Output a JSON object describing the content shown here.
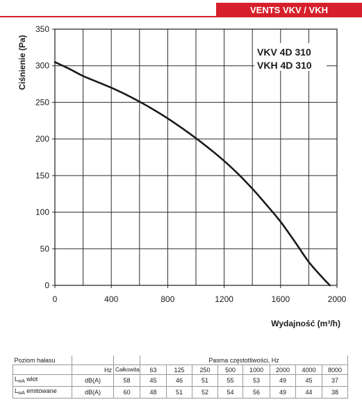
{
  "brand": {
    "label": "VENTS VKV / VKH"
  },
  "chart_data": {
    "type": "line",
    "model_labels": [
      "VKV 4D 310",
      "VKH 4D 310"
    ],
    "xlabel": "Wydajność (m³/h)",
    "ylabel": "Ciśnienie (Pa)",
    "xlim": [
      0,
      2000
    ],
    "ylim": [
      0,
      350
    ],
    "x_major_ticks": [
      0,
      400,
      800,
      1200,
      1600,
      2000
    ],
    "x_gridlines_step": 200,
    "y_ticks": [
      0,
      50,
      100,
      150,
      200,
      250,
      300,
      350
    ],
    "grid": true,
    "series": [
      {
        "x": [
          0,
          100,
          200,
          300,
          400,
          500,
          600,
          700,
          800,
          900,
          1000,
          1100,
          1200,
          1300,
          1400,
          1500,
          1600,
          1700,
          1800,
          1900,
          1950
        ],
        "y": [
          305,
          296,
          286,
          278,
          270,
          261,
          251,
          240,
          228,
          215,
          201,
          186,
          170,
          152,
          132,
          110,
          87,
          60,
          32,
          10,
          0
        ]
      }
    ]
  },
  "noise_table": {
    "title": "Poziom hałasu",
    "freq_title": "Pasma częstotliwości, Hz",
    "unit_header": "Hz",
    "total_header": "Całkowita",
    "bands": [
      "63",
      "125",
      "250",
      "500",
      "1000",
      "2000",
      "4000",
      "8000"
    ],
    "rows": [
      {
        "label_main": "L",
        "label_sub": "wA",
        "label_rest": " wlot",
        "unit": "dB(A)",
        "total": "58",
        "values": [
          "45",
          "46",
          "51",
          "55",
          "53",
          "49",
          "45",
          "37"
        ]
      },
      {
        "label_main": "L",
        "label_sub": "wA",
        "label_rest": " emitowane",
        "unit": "dB(A)",
        "total": "60",
        "values": [
          "48",
          "51",
          "52",
          "54",
          "56",
          "49",
          "44",
          "38"
        ]
      }
    ]
  }
}
